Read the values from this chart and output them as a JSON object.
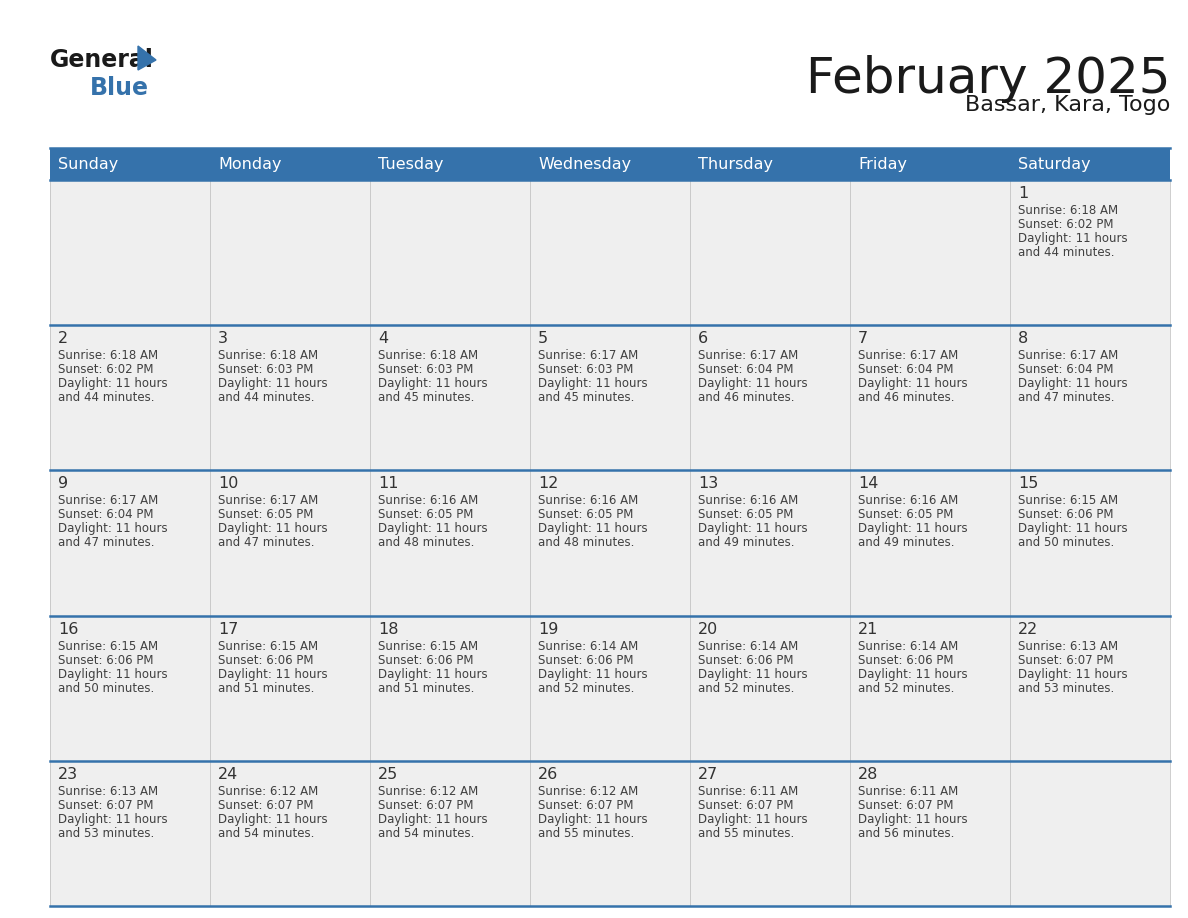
{
  "title": "February 2025",
  "subtitle": "Bassar, Kara, Togo",
  "header_color": "#3572AB",
  "header_text_color": "#FFFFFF",
  "bg_color": "#FFFFFF",
  "cell_bg": "#EFEFEF",
  "text_color": "#404040",
  "day_number_color": "#333333",
  "days_of_week": [
    "Sunday",
    "Monday",
    "Tuesday",
    "Wednesday",
    "Thursday",
    "Friday",
    "Saturday"
  ],
  "calendar_data": [
    [
      null,
      null,
      null,
      null,
      null,
      null,
      {
        "day": 1,
        "sunrise": "6:18 AM",
        "sunset": "6:02 PM",
        "daylight": "11 hours",
        "daylight2": "and 44 minutes."
      }
    ],
    [
      {
        "day": 2,
        "sunrise": "6:18 AM",
        "sunset": "6:02 PM",
        "daylight": "11 hours",
        "daylight2": "and 44 minutes."
      },
      {
        "day": 3,
        "sunrise": "6:18 AM",
        "sunset": "6:03 PM",
        "daylight": "11 hours",
        "daylight2": "and 44 minutes."
      },
      {
        "day": 4,
        "sunrise": "6:18 AM",
        "sunset": "6:03 PM",
        "daylight": "11 hours",
        "daylight2": "and 45 minutes."
      },
      {
        "day": 5,
        "sunrise": "6:17 AM",
        "sunset": "6:03 PM",
        "daylight": "11 hours",
        "daylight2": "and 45 minutes."
      },
      {
        "day": 6,
        "sunrise": "6:17 AM",
        "sunset": "6:04 PM",
        "daylight": "11 hours",
        "daylight2": "and 46 minutes."
      },
      {
        "day": 7,
        "sunrise": "6:17 AM",
        "sunset": "6:04 PM",
        "daylight": "11 hours",
        "daylight2": "and 46 minutes."
      },
      {
        "day": 8,
        "sunrise": "6:17 AM",
        "sunset": "6:04 PM",
        "daylight": "11 hours",
        "daylight2": "and 47 minutes."
      }
    ],
    [
      {
        "day": 9,
        "sunrise": "6:17 AM",
        "sunset": "6:04 PM",
        "daylight": "11 hours",
        "daylight2": "and 47 minutes."
      },
      {
        "day": 10,
        "sunrise": "6:17 AM",
        "sunset": "6:05 PM",
        "daylight": "11 hours",
        "daylight2": "and 47 minutes."
      },
      {
        "day": 11,
        "sunrise": "6:16 AM",
        "sunset": "6:05 PM",
        "daylight": "11 hours",
        "daylight2": "and 48 minutes."
      },
      {
        "day": 12,
        "sunrise": "6:16 AM",
        "sunset": "6:05 PM",
        "daylight": "11 hours",
        "daylight2": "and 48 minutes."
      },
      {
        "day": 13,
        "sunrise": "6:16 AM",
        "sunset": "6:05 PM",
        "daylight": "11 hours",
        "daylight2": "and 49 minutes."
      },
      {
        "day": 14,
        "sunrise": "6:16 AM",
        "sunset": "6:05 PM",
        "daylight": "11 hours",
        "daylight2": "and 49 minutes."
      },
      {
        "day": 15,
        "sunrise": "6:15 AM",
        "sunset": "6:06 PM",
        "daylight": "11 hours",
        "daylight2": "and 50 minutes."
      }
    ],
    [
      {
        "day": 16,
        "sunrise": "6:15 AM",
        "sunset": "6:06 PM",
        "daylight": "11 hours",
        "daylight2": "and 50 minutes."
      },
      {
        "day": 17,
        "sunrise": "6:15 AM",
        "sunset": "6:06 PM",
        "daylight": "11 hours",
        "daylight2": "and 51 minutes."
      },
      {
        "day": 18,
        "sunrise": "6:15 AM",
        "sunset": "6:06 PM",
        "daylight": "11 hours",
        "daylight2": "and 51 minutes."
      },
      {
        "day": 19,
        "sunrise": "6:14 AM",
        "sunset": "6:06 PM",
        "daylight": "11 hours",
        "daylight2": "and 52 minutes."
      },
      {
        "day": 20,
        "sunrise": "6:14 AM",
        "sunset": "6:06 PM",
        "daylight": "11 hours",
        "daylight2": "and 52 minutes."
      },
      {
        "day": 21,
        "sunrise": "6:14 AM",
        "sunset": "6:06 PM",
        "daylight": "11 hours",
        "daylight2": "and 52 minutes."
      },
      {
        "day": 22,
        "sunrise": "6:13 AM",
        "sunset": "6:07 PM",
        "daylight": "11 hours",
        "daylight2": "and 53 minutes."
      }
    ],
    [
      {
        "day": 23,
        "sunrise": "6:13 AM",
        "sunset": "6:07 PM",
        "daylight": "11 hours",
        "daylight2": "and 53 minutes."
      },
      {
        "day": 24,
        "sunrise": "6:12 AM",
        "sunset": "6:07 PM",
        "daylight": "11 hours",
        "daylight2": "and 54 minutes."
      },
      {
        "day": 25,
        "sunrise": "6:12 AM",
        "sunset": "6:07 PM",
        "daylight": "11 hours",
        "daylight2": "and 54 minutes."
      },
      {
        "day": 26,
        "sunrise": "6:12 AM",
        "sunset": "6:07 PM",
        "daylight": "11 hours",
        "daylight2": "and 55 minutes."
      },
      {
        "day": 27,
        "sunrise": "6:11 AM",
        "sunset": "6:07 PM",
        "daylight": "11 hours",
        "daylight2": "and 55 minutes."
      },
      {
        "day": 28,
        "sunrise": "6:11 AM",
        "sunset": "6:07 PM",
        "daylight": "11 hours",
        "daylight2": "and 56 minutes."
      },
      null
    ]
  ]
}
